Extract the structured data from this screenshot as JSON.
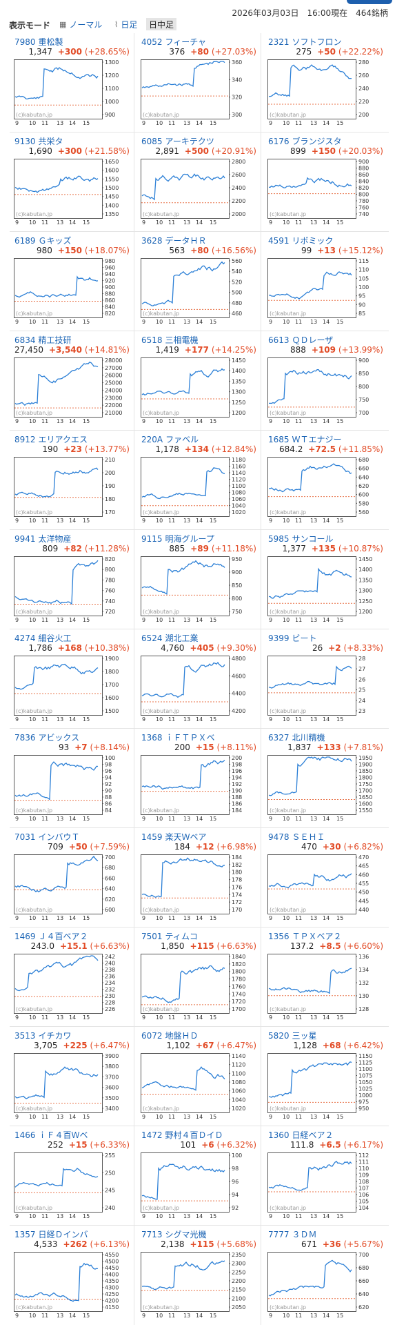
{
  "header": {
    "mode_label": "表示モード",
    "normal_label": "ノーマル",
    "daily_label": "日足",
    "intraday_label": "日中足",
    "date_text": "2026年03月03日　16:00現在　464銘柄"
  },
  "colors": {
    "line": "#2b7fd6",
    "prev_close": "#e8734a",
    "up": "#e24b26",
    "link": "#1b64b5"
  },
  "watermark": "(c)kabutan.jp",
  "x_ticks": [
    "9",
    "10",
    "11",
    "13",
    "14",
    "15"
  ],
  "stocks": [
    {
      "code": "7980",
      "name": "重松製",
      "price": "1,347",
      "change": "+300",
      "pct": "+28.65%",
      "ticks": [
        "1300",
        "1200",
        "1100",
        "1000",
        "900"
      ]
    },
    {
      "code": "4052",
      "name": "フィーチャ",
      "price": "376",
      "change": "+80",
      "pct": "+27.03%",
      "ticks": [
        "360",
        "340",
        "320",
        "300"
      ]
    },
    {
      "code": "2321",
      "name": "ソフトフロン",
      "price": "275",
      "change": "+50",
      "pct": "+22.22%",
      "ticks": [
        "280",
        "260",
        "240",
        "220",
        "200"
      ]
    },
    {
      "code": "9130",
      "name": "共栄タ",
      "price": "1,690",
      "change": "+300",
      "pct": "+21.58%",
      "ticks": [
        "1650",
        "1600",
        "1550",
        "1500",
        "1450",
        "1400",
        "1350"
      ]
    },
    {
      "code": "6085",
      "name": "アーキテクツ",
      "price": "2,891",
      "change": "+500",
      "pct": "+20.91%",
      "ticks": [
        "2800",
        "2600",
        "2400",
        "2200",
        "2000"
      ]
    },
    {
      "code": "6176",
      "name": "ブランジスタ",
      "price": "899",
      "change": "+150",
      "pct": "+20.03%",
      "ticks": [
        "900",
        "880",
        "860",
        "840",
        "820",
        "800",
        "780",
        "760",
        "740"
      ]
    },
    {
      "code": "6189",
      "name": "Ｇキッズ",
      "price": "980",
      "change": "+150",
      "pct": "+18.07%",
      "ticks": [
        "980",
        "960",
        "940",
        "920",
        "900",
        "880",
        "860",
        "840",
        "820"
      ]
    },
    {
      "code": "3628",
      "name": "データＨＲ",
      "price": "563",
      "change": "+80",
      "pct": "+16.56%",
      "ticks": [
        "560",
        "540",
        "520",
        "500",
        "480",
        "460"
      ]
    },
    {
      "code": "4591",
      "name": "リボミック",
      "price": "99",
      "change": "+13",
      "pct": "+15.12%",
      "ticks": [
        "115",
        "110",
        "105",
        "100",
        "95",
        "90",
        "85"
      ]
    },
    {
      "code": "6834",
      "name": "精工技研",
      "price": "27,450",
      "change": "+3,540",
      "pct": "+14.81%",
      "ticks": [
        "28000",
        "27000",
        "26000",
        "25000",
        "24000",
        "23000",
        "22000",
        "21000"
      ]
    },
    {
      "code": "6518",
      "name": "三相電機",
      "price": "1,419",
      "change": "+177",
      "pct": "+14.25%",
      "ticks": [
        "1450",
        "1400",
        "1350",
        "1300",
        "1250",
        "1200"
      ]
    },
    {
      "code": "6613",
      "name": "ＱＤレーザ",
      "price": "888",
      "change": "+109",
      "pct": "+13.99%",
      "ticks": [
        "900",
        "850",
        "800",
        "750",
        "700"
      ]
    },
    {
      "code": "8912",
      "name": "エリアクエス",
      "price": "190",
      "change": "+23",
      "pct": "+13.77%",
      "ticks": [
        "210",
        "200",
        "190",
        "180",
        "170"
      ]
    },
    {
      "code": "220A",
      "name": "ファベル",
      "price": "1,178",
      "change": "+134",
      "pct": "+12.84%",
      "ticks": [
        "1180",
        "1160",
        "1140",
        "1120",
        "1100",
        "1080",
        "1060",
        "1040",
        "1020"
      ]
    },
    {
      "code": "1685",
      "name": "ＷＴエナジー",
      "price": "684.2",
      "change": "+72.5",
      "pct": "+11.85%",
      "ticks": [
        "680",
        "660",
        "640",
        "620",
        "600",
        "580",
        "560"
      ]
    },
    {
      "code": "9941",
      "name": "太洋物産",
      "price": "809",
      "change": "+82",
      "pct": "+11.28%",
      "ticks": [
        "820",
        "800",
        "780",
        "760",
        "740",
        "720"
      ]
    },
    {
      "code": "9115",
      "name": "明海グループ",
      "price": "885",
      "change": "+89",
      "pct": "+11.18%",
      "ticks": [
        "950",
        "900",
        "850",
        "800",
        "750"
      ]
    },
    {
      "code": "5985",
      "name": "サンコール",
      "price": "1,377",
      "change": "+135",
      "pct": "+10.87%",
      "ticks": [
        "1450",
        "1400",
        "1350",
        "1300",
        "1250",
        "1200"
      ]
    },
    {
      "code": "4274",
      "name": "細谷火工",
      "price": "1,786",
      "change": "+168",
      "pct": "+10.38%",
      "ticks": [
        "1900",
        "1800",
        "1700",
        "1600",
        "1500"
      ]
    },
    {
      "code": "6524",
      "name": "湖北工業",
      "price": "4,760",
      "change": "+405",
      "pct": "+9.30%",
      "ticks": [
        "4800",
        "4600",
        "4400",
        "4200"
      ]
    },
    {
      "code": "9399",
      "name": "ビート",
      "price": "26",
      "change": "+2",
      "pct": "+8.33%",
      "ticks": [
        "28",
        "27",
        "26",
        "25",
        "24",
        "23"
      ]
    },
    {
      "code": "7836",
      "name": "アビックス",
      "price": "93",
      "change": "+7",
      "pct": "+8.14%",
      "ticks": [
        "100",
        "98",
        "96",
        "94",
        "92",
        "90",
        "88",
        "86",
        "84"
      ]
    },
    {
      "code": "1368",
      "name": "ｉＦＴＰＸベ",
      "price": "200",
      "change": "+15",
      "pct": "+8.11%",
      "ticks": [
        "200",
        "198",
        "196",
        "194",
        "192",
        "190",
        "188",
        "186",
        "184"
      ]
    },
    {
      "code": "6327",
      "name": "北川精機",
      "price": "1,837",
      "change": "+133",
      "pct": "+7.81%",
      "ticks": [
        "1950",
        "1900",
        "1850",
        "1800",
        "1750",
        "1700",
        "1650",
        "1600",
        "1550"
      ]
    },
    {
      "code": "7031",
      "name": "インバウＴ",
      "price": "709",
      "change": "+50",
      "pct": "+7.59%",
      "ticks": [
        "700",
        "680",
        "660",
        "640",
        "620",
        "600"
      ]
    },
    {
      "code": "1459",
      "name": "楽天Ｗベア",
      "price": "184",
      "change": "+12",
      "pct": "+6.98%",
      "ticks": [
        "184",
        "182",
        "180",
        "178",
        "176",
        "174",
        "172",
        "170"
      ]
    },
    {
      "code": "9478",
      "name": "ＳＥＨＩ",
      "price": "470",
      "change": "+30",
      "pct": "+6.82%",
      "ticks": [
        "470",
        "465",
        "460",
        "455",
        "450",
        "445",
        "440"
      ]
    },
    {
      "code": "1469",
      "name": "Ｊ４百ベア２",
      "price": "243.0",
      "change": "+15.1",
      "pct": "+6.63%",
      "ticks": [
        "242",
        "240",
        "238",
        "236",
        "234",
        "232",
        "230",
        "228",
        "226"
      ]
    },
    {
      "code": "7501",
      "name": "ティムコ",
      "price": "1,850",
      "change": "+115",
      "pct": "+6.63%",
      "ticks": [
        "1840",
        "1820",
        "1800",
        "1780",
        "1760",
        "1740",
        "1720",
        "1700"
      ]
    },
    {
      "code": "1356",
      "name": "ＴＰＸベア２",
      "price": "137.2",
      "change": "+8.5",
      "pct": "+6.60%",
      "ticks": [
        "136",
        "134",
        "132",
        "130",
        "128"
      ]
    },
    {
      "code": "3513",
      "name": "イチカワ",
      "price": "3,705",
      "change": "+225",
      "pct": "+6.47%",
      "ticks": [
        "3900",
        "3800",
        "3700",
        "3600",
        "3500",
        "3400"
      ]
    },
    {
      "code": "6072",
      "name": "地盤ＨＤ",
      "price": "1,102",
      "change": "+67",
      "pct": "+6.47%",
      "ticks": [
        "1140",
        "1120",
        "1100",
        "1080",
        "1060",
        "1040",
        "1020"
      ]
    },
    {
      "code": "5820",
      "name": "三ッ星",
      "price": "1,128",
      "change": "+68",
      "pct": "+6.42%",
      "ticks": [
        "1150",
        "1125",
        "1100",
        "1075",
        "1050",
        "1025",
        "1000",
        "975",
        "950"
      ]
    },
    {
      "code": "1466",
      "name": "ｉＦ４百Ｗベ",
      "price": "252",
      "change": "+15",
      "pct": "+6.33%",
      "ticks": [
        "255",
        "250",
        "245",
        "240"
      ]
    },
    {
      "code": "1472",
      "name": "野村４百ＤイＤ",
      "price": "101",
      "change": "+6",
      "pct": "+6.32%",
      "ticks": [
        "100",
        "98",
        "96",
        "94",
        "92"
      ]
    },
    {
      "code": "1360",
      "name": "日経ベア２",
      "price": "111.8",
      "change": "+6.5",
      "pct": "+6.17%",
      "ticks": [
        "112",
        "111",
        "110",
        "109",
        "108",
        "107",
        "106",
        "105",
        "104"
      ]
    },
    {
      "code": "1357",
      "name": "日経Ｄインバ",
      "price": "4,533",
      "change": "+262",
      "pct": "+6.13%",
      "ticks": [
        "4550",
        "4500",
        "4450",
        "4400",
        "4350",
        "4300",
        "4250",
        "4200",
        "4150"
      ]
    },
    {
      "code": "7713",
      "name": "シグマ光機",
      "price": "2,138",
      "change": "+115",
      "pct": "+5.68%",
      "ticks": [
        "2350",
        "2300",
        "2250",
        "2200",
        "2150",
        "2100",
        "2050"
      ]
    },
    {
      "code": "7777",
      "name": "３ＤＭ",
      "price": "671",
      "change": "+36",
      "pct": "+5.67%",
      "ticks": [
        "700",
        "680",
        "660",
        "640",
        "620"
      ]
    }
  ]
}
